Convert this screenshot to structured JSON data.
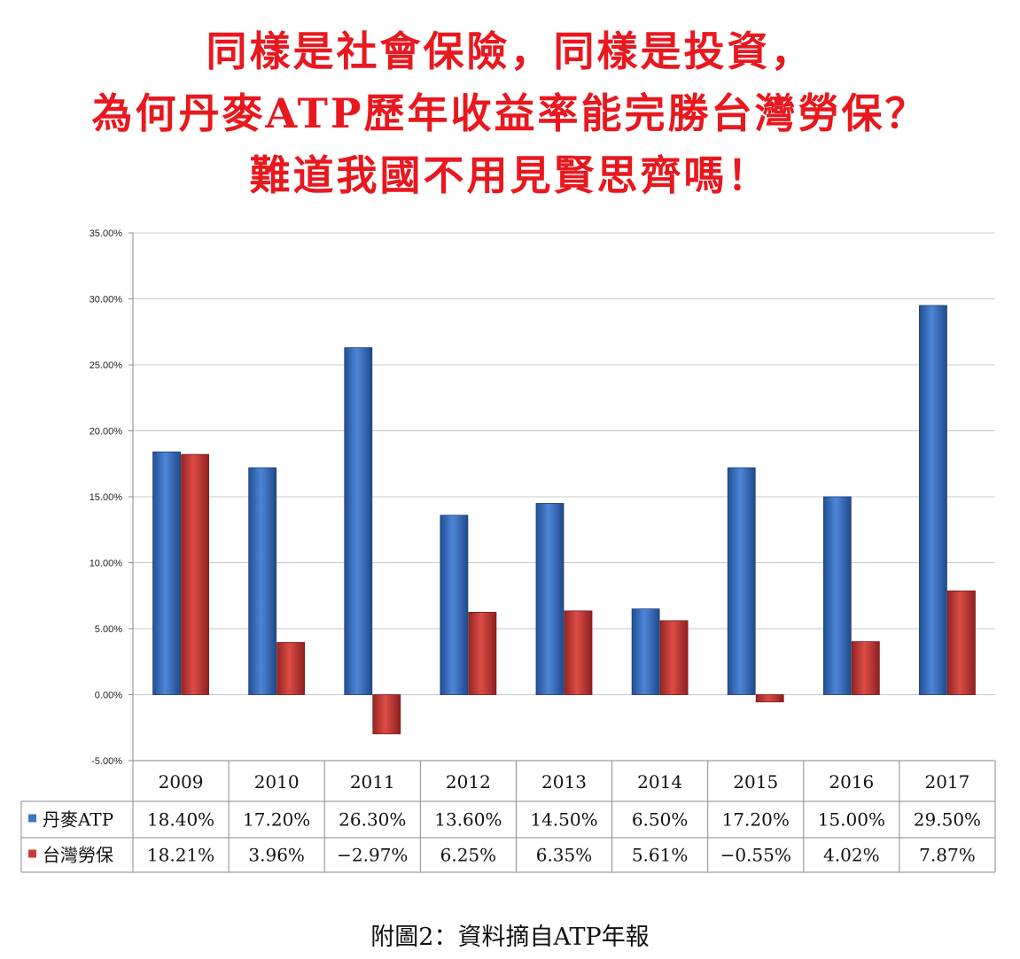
{
  "headline": {
    "line1": "同樣是社會保險，同樣是投資，",
    "line2": "為何丹麥ATP歷年收益率能完勝台灣勞保？",
    "line3": "難道我國不用見賢思齊嗎！"
  },
  "colors": {
    "headline": "#e8181e",
    "atp": "#3d74c4",
    "labor": "#c93a36"
  },
  "chart_data": {
    "type": "bar",
    "categories": [
      "2009",
      "2010",
      "2011",
      "2012",
      "2013",
      "2014",
      "2015",
      "2016",
      "2017"
    ],
    "series": [
      {
        "name": "丹麥ATP",
        "values": [
          18.4,
          17.2,
          26.3,
          13.6,
          14.5,
          6.5,
          17.2,
          15.0,
          29.5
        ],
        "labels": [
          "18.40%",
          "17.20%",
          "26.30%",
          "13.60%",
          "14.50%",
          "6.50%",
          "17.20%",
          "15.00%",
          "29.50%"
        ]
      },
      {
        "name": "台灣勞保",
        "values": [
          18.21,
          3.96,
          -2.97,
          6.25,
          6.35,
          5.61,
          -0.55,
          4.02,
          7.87
        ],
        "labels": [
          "18.21%",
          "3.96%",
          "−2.97%",
          "6.25%",
          "6.35%",
          "5.61%",
          "−0.55%",
          "4.02%",
          "7.87%"
        ]
      }
    ],
    "y_ticks": [
      "35.00%",
      "30.00%",
      "25.00%",
      "20.00%",
      "15.00%",
      "10.00%",
      "5.00%",
      "0.00%",
      "-5.00%"
    ],
    "ylim": [
      -5,
      35
    ],
    "grid": true,
    "legend": "data table below chart"
  },
  "caption": "附圖2：資料摘自ATP年報"
}
